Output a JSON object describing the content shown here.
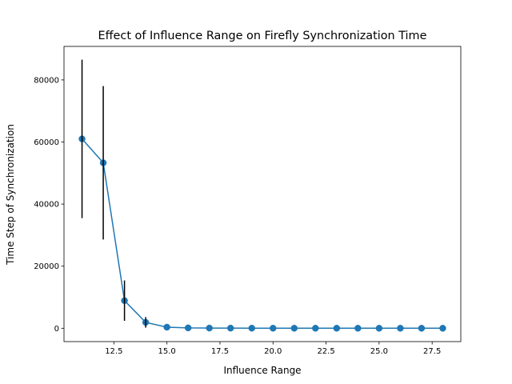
{
  "chart_data": {
    "type": "scatter",
    "title": "Effect of Influence Range on Firefly Synchronization Time",
    "xlabel": "Influence Range",
    "ylabel": "Time Step of Synchronization",
    "xlim": [
      10.15,
      28.85
    ],
    "ylim": [
      -4300,
      90800
    ],
    "xticks": [
      12.5,
      15.0,
      17.5,
      20.0,
      22.5,
      25.0,
      27.5
    ],
    "xtick_labels": [
      "12.5",
      "15.0",
      "17.5",
      "20.0",
      "22.5",
      "25.0",
      "27.5"
    ],
    "yticks": [
      0,
      20000,
      40000,
      60000,
      80000
    ],
    "ytick_labels": [
      "0",
      "20000",
      "40000",
      "60000",
      "80000"
    ],
    "grid": false,
    "line_color": "#1f77b4",
    "marker_color": "#1f77b4",
    "errorbar_color": "#000000",
    "series": [
      {
        "x": [
          11,
          12,
          13,
          14,
          15,
          16,
          17,
          18,
          19,
          20,
          21,
          22,
          23,
          24,
          25,
          26,
          27,
          28
        ],
        "y": [
          61000,
          53300,
          8900,
          1900,
          350,
          120,
          60,
          40,
          30,
          20,
          15,
          12,
          10,
          8,
          6,
          5,
          4,
          3
        ],
        "error": [
          25500,
          24700,
          6500,
          1700,
          0,
          0,
          0,
          0,
          0,
          0,
          0,
          0,
          0,
          0,
          0,
          0,
          0,
          0
        ]
      }
    ]
  }
}
